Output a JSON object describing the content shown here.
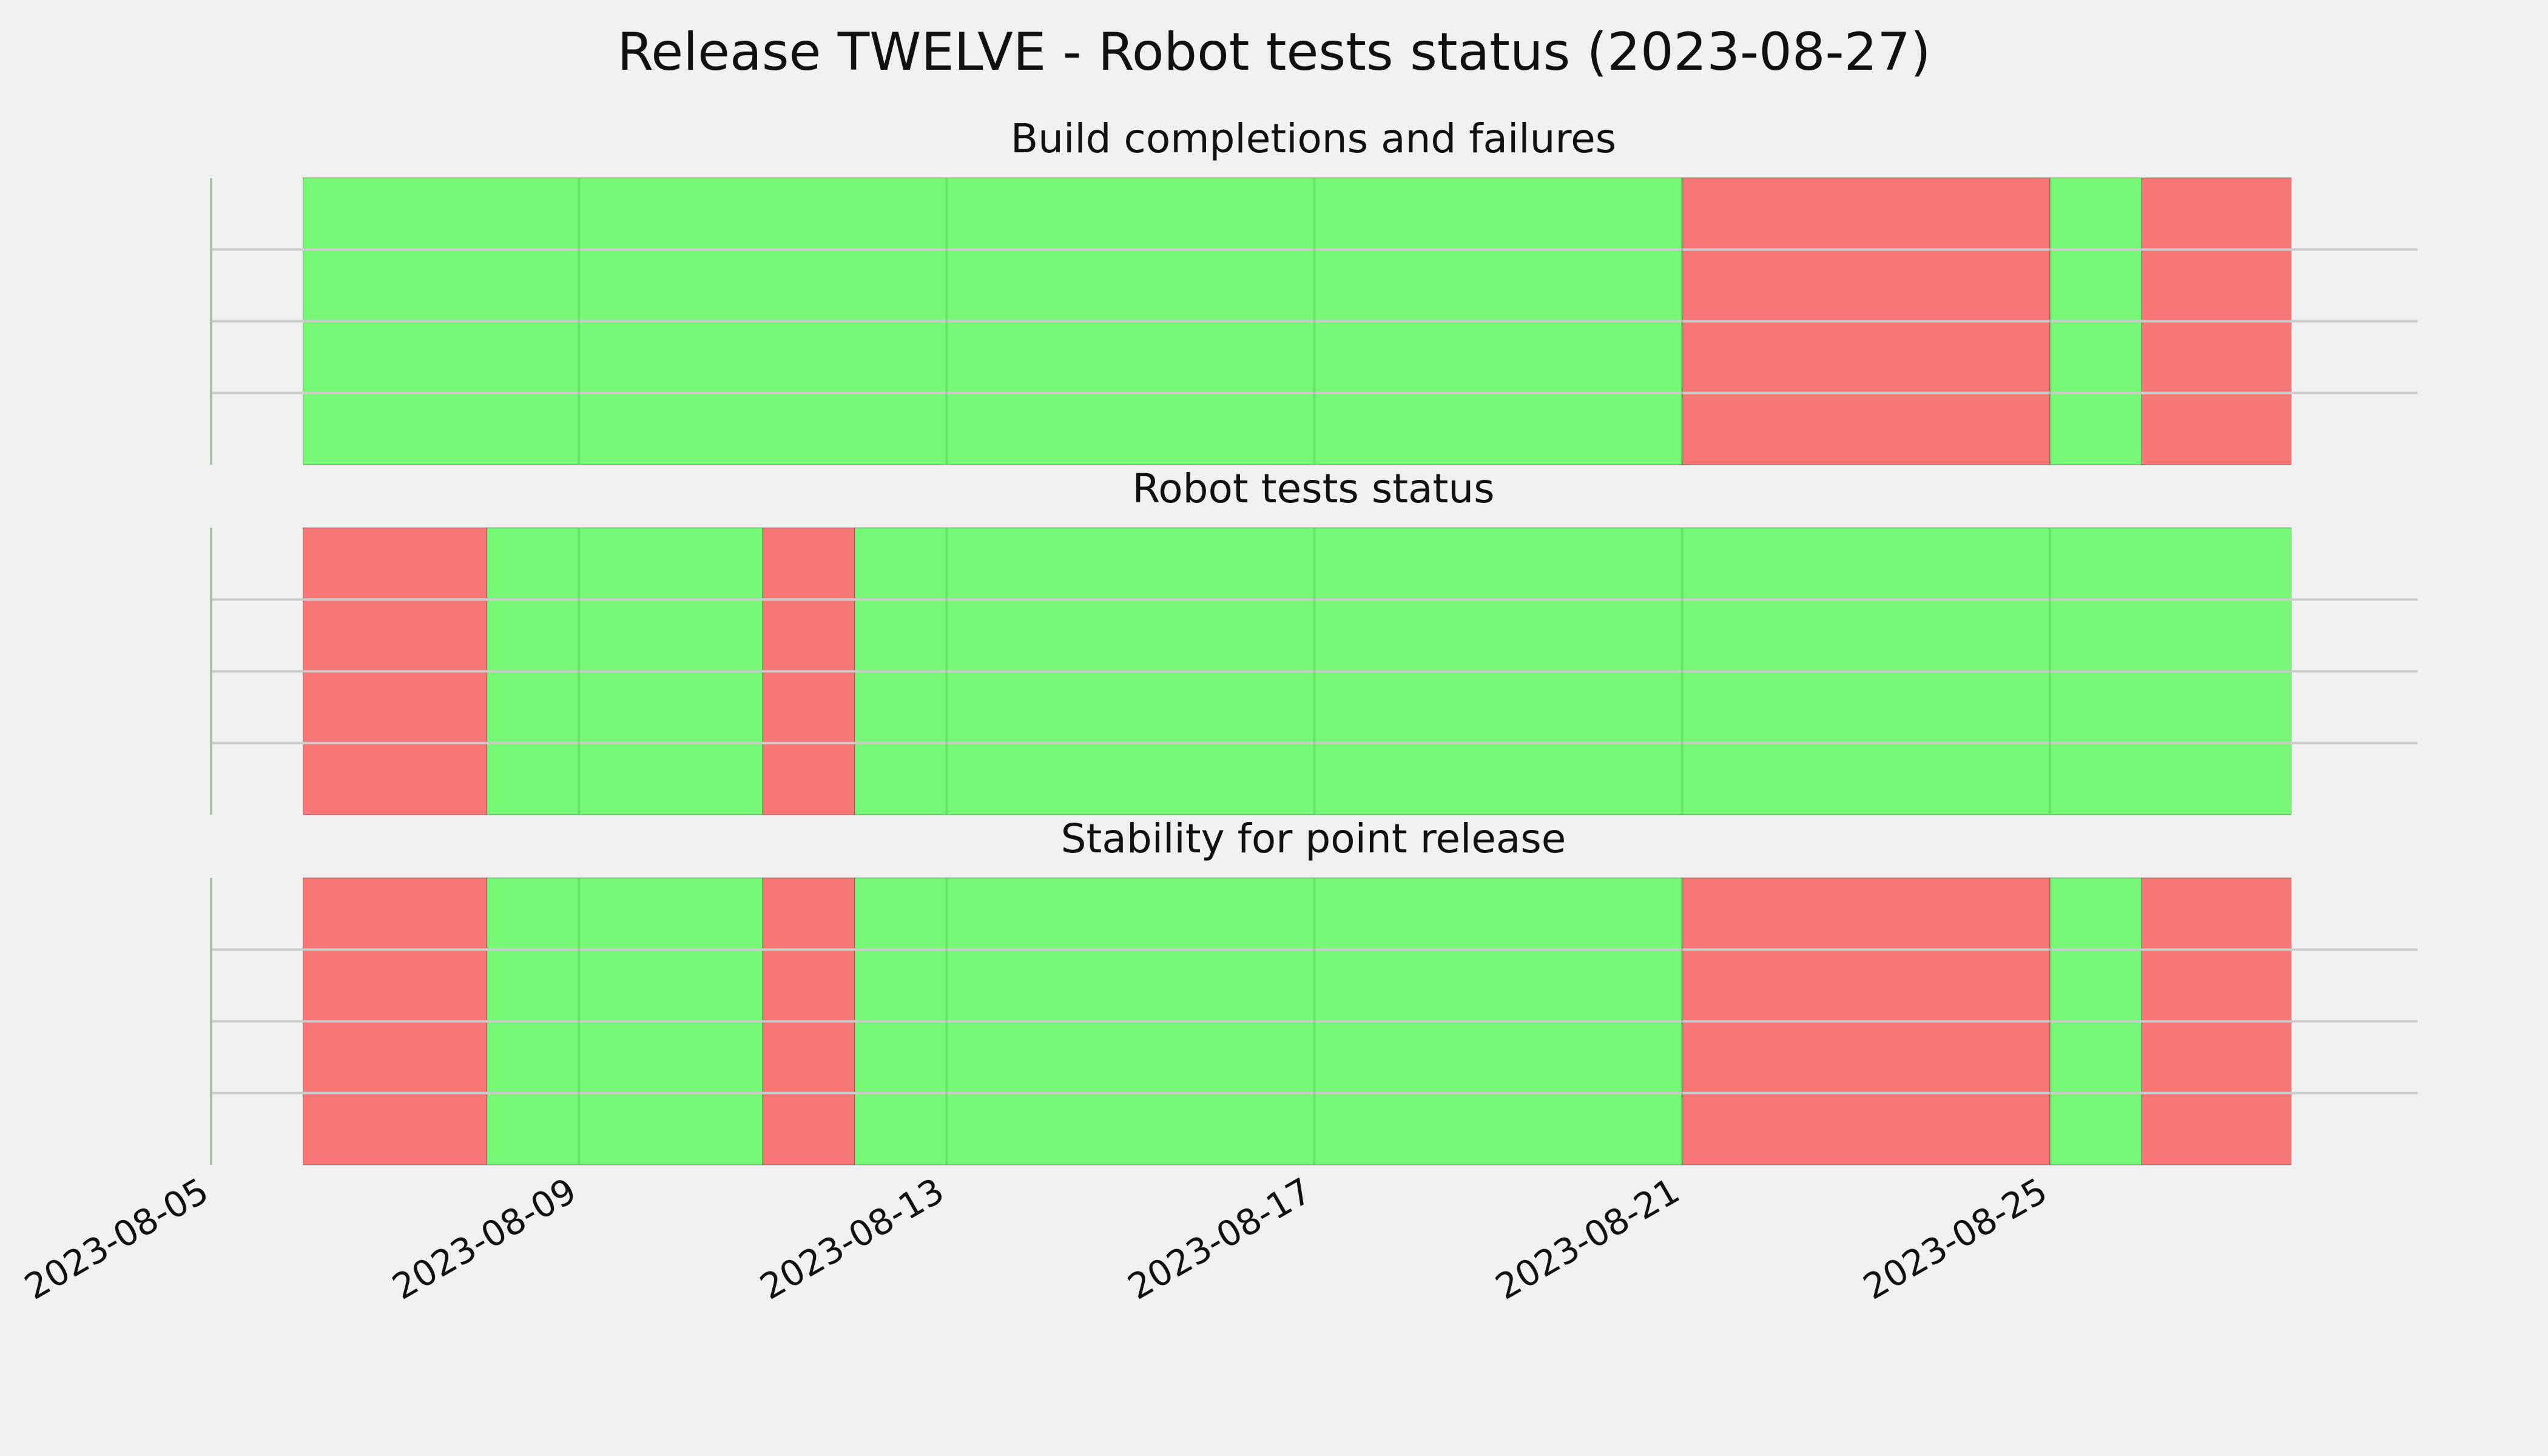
{
  "chart_data": {
    "type": "timeline",
    "title": "Release TWELVE - Robot tests status (2023-08-27)",
    "x_axis": {
      "type": "date",
      "range": [
        "2023-08-05",
        "2023-08-29"
      ],
      "ticks": [
        "2023-08-05",
        "2023-08-09",
        "2023-08-13",
        "2023-08-17",
        "2023-08-21",
        "2023-08-25"
      ],
      "tick_label_rotation": "30deg",
      "grid": true
    },
    "y_axis": {
      "tick_labels": "none",
      "grid": true
    },
    "legend": "none",
    "colors": {
      "pass": "#76f776",
      "fail": "#f77676",
      "background": "#f0f0f0",
      "grid": "#cbcbcb"
    },
    "panels": [
      {
        "subtitle": "Build completions and failures",
        "segments": [
          {
            "start": "2023-08-06",
            "end": "2023-08-21",
            "status": "pass"
          },
          {
            "start": "2023-08-21",
            "end": "2023-08-25",
            "status": "fail"
          },
          {
            "start": "2023-08-25",
            "end": "2023-08-26",
            "status": "pass"
          },
          {
            "start": "2023-08-26",
            "end": "2023-08-27 15:00",
            "status": "fail"
          }
        ]
      },
      {
        "subtitle": "Robot tests status",
        "segments": [
          {
            "start": "2023-08-06",
            "end": "2023-08-08",
            "status": "fail"
          },
          {
            "start": "2023-08-08",
            "end": "2023-08-11",
            "status": "pass"
          },
          {
            "start": "2023-08-11",
            "end": "2023-08-12",
            "status": "fail"
          },
          {
            "start": "2023-08-12",
            "end": "2023-08-27 15:00",
            "status": "pass"
          }
        ]
      },
      {
        "subtitle": "Stability for point release",
        "segments": [
          {
            "start": "2023-08-06",
            "end": "2023-08-08",
            "status": "fail"
          },
          {
            "start": "2023-08-08",
            "end": "2023-08-11",
            "status": "pass"
          },
          {
            "start": "2023-08-11",
            "end": "2023-08-12",
            "status": "fail"
          },
          {
            "start": "2023-08-12",
            "end": "2023-08-21",
            "status": "pass"
          },
          {
            "start": "2023-08-21",
            "end": "2023-08-25",
            "status": "fail"
          },
          {
            "start": "2023-08-25",
            "end": "2023-08-26",
            "status": "pass"
          },
          {
            "start": "2023-08-26",
            "end": "2023-08-27 15:00",
            "status": "fail"
          }
        ]
      }
    ]
  }
}
